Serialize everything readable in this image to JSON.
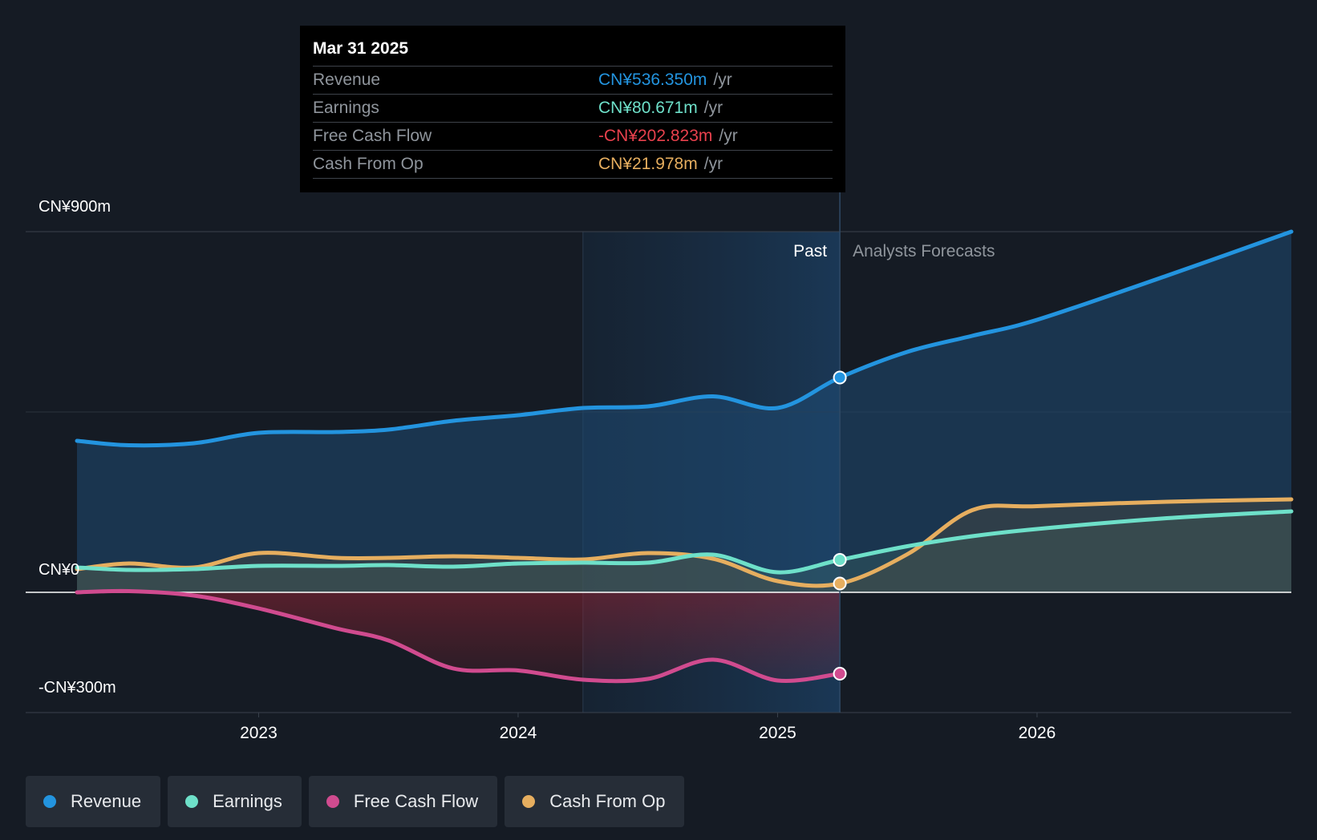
{
  "chart_data": {
    "type": "line",
    "title": "",
    "y_axis_labels": [
      "CN¥900m",
      "CN¥0",
      "-CN¥300m"
    ],
    "ylim": [
      -300,
      900
    ],
    "x_ticks": [
      "2023",
      "2024",
      "2025",
      "2026"
    ],
    "x_range": [
      2022.3,
      2026.98
    ],
    "past_label": "Past",
    "forecast_label": "Analysts Forecasts",
    "divider_x": 2025.24,
    "highlight_start_x": 2024.25,
    "series": [
      {
        "name": "Revenue",
        "color": "#2394df",
        "x": [
          2022.3,
          2022.5,
          2022.75,
          2023.0,
          2023.3,
          2023.5,
          2023.75,
          2024.0,
          2024.25,
          2024.5,
          2024.75,
          2025.0,
          2025.24,
          2025.5,
          2025.75,
          2026.0,
          2026.5,
          2026.98
        ],
        "values": [
          378,
          367,
          372,
          398,
          400,
          406,
          428,
          442,
          460,
          464,
          489,
          460,
          536,
          600,
          640,
          680,
          790,
          900
        ]
      },
      {
        "name": "Earnings",
        "color": "#6ee0c9",
        "x": [
          2022.3,
          2022.5,
          2022.75,
          2023.0,
          2023.3,
          2023.5,
          2023.75,
          2024.0,
          2024.25,
          2024.5,
          2024.75,
          2025.0,
          2025.24,
          2025.5,
          2025.75,
          2026.0,
          2026.5,
          2026.98
        ],
        "values": [
          62,
          56,
          58,
          66,
          66,
          68,
          64,
          72,
          74,
          74,
          94,
          50,
          81,
          115,
          140,
          158,
          185,
          202
        ]
      },
      {
        "name": "Free Cash Flow",
        "color": "#d04b8f",
        "x": [
          2022.3,
          2022.5,
          2022.75,
          2023.0,
          2023.3,
          2023.5,
          2023.75,
          2024.0,
          2024.25,
          2024.5,
          2024.75,
          2025.0,
          2025.24
        ],
        "values": [
          0,
          3,
          -8,
          -40,
          -90,
          -120,
          -190,
          -195,
          -218,
          -216,
          -168,
          -220,
          -203
        ]
      },
      {
        "name": "Cash From Op",
        "color": "#e6ae5f",
        "x": [
          2022.3,
          2022.5,
          2022.75,
          2023.0,
          2023.3,
          2023.5,
          2023.75,
          2024.0,
          2024.25,
          2024.5,
          2024.75,
          2025.0,
          2025.24,
          2025.5,
          2025.75,
          2026.0,
          2026.5,
          2026.98
        ],
        "values": [
          58,
          72,
          62,
          98,
          86,
          86,
          90,
          86,
          82,
          98,
          84,
          28,
          22,
          95,
          205,
          215,
          226,
          232
        ]
      }
    ]
  },
  "tooltip": {
    "date": "Mar 31 2025",
    "rows": [
      {
        "label": "Revenue",
        "value": "CN¥536.350m",
        "unit": "/yr",
        "color": "#2394df"
      },
      {
        "label": "Earnings",
        "value": "CN¥80.671m",
        "unit": "/yr",
        "color": "#6ee0c9"
      },
      {
        "label": "Free Cash Flow",
        "value": "-CN¥202.823m",
        "unit": "/yr",
        "color": "#e8414d"
      },
      {
        "label": "Cash From Op",
        "value": "CN¥21.978m",
        "unit": "/yr",
        "color": "#e6ae5f"
      }
    ]
  },
  "legend": [
    {
      "label": "Revenue",
      "color": "#2394df"
    },
    {
      "label": "Earnings",
      "color": "#6ee0c9"
    },
    {
      "label": "Free Cash Flow",
      "color": "#d04b8f"
    },
    {
      "label": "Cash From Op",
      "color": "#e6ae5f"
    }
  ]
}
